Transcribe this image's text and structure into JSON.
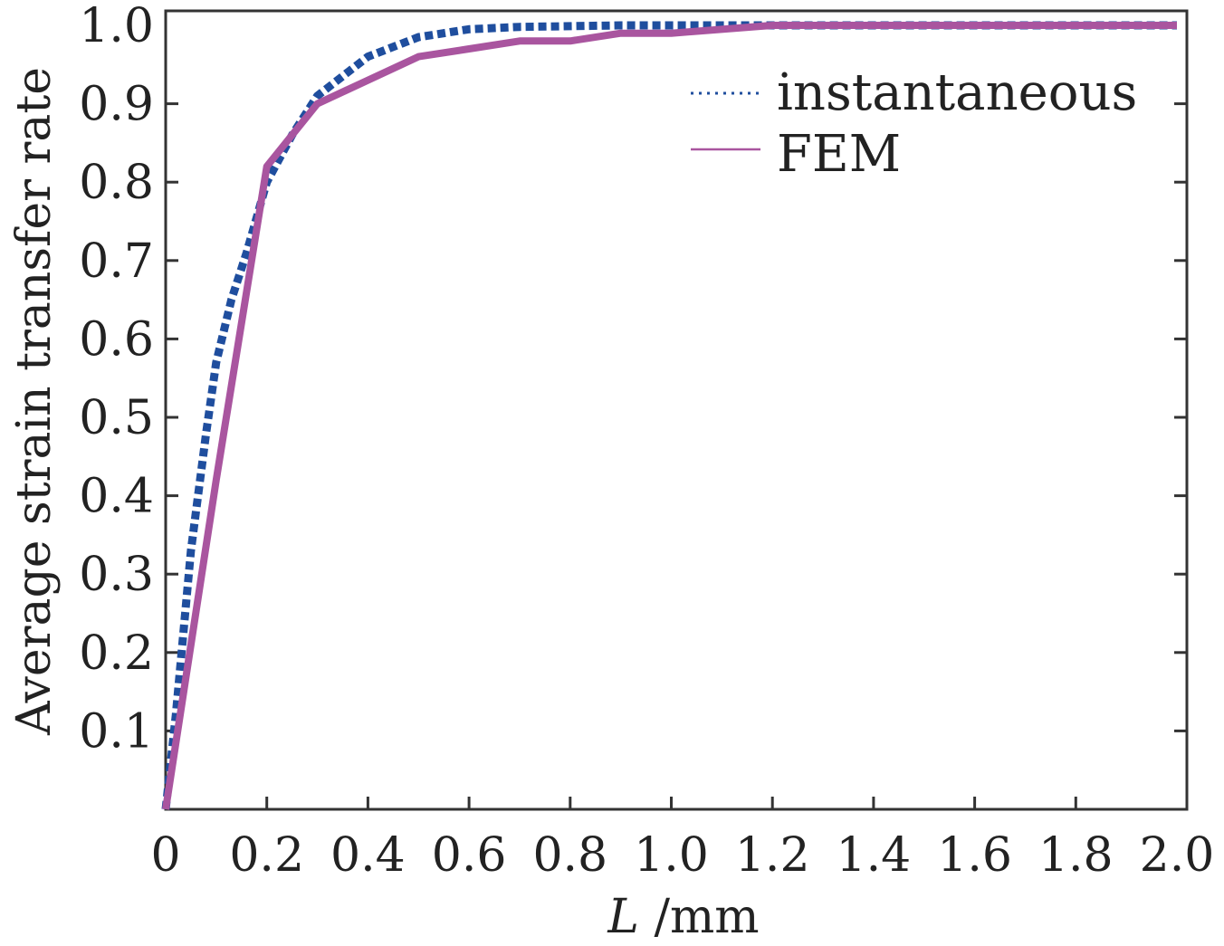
{
  "chart_data": {
    "type": "line",
    "title": "",
    "xlabel_italic": "L",
    "xlabel_unit": " /mm",
    "ylabel": "Average strain transfer rate",
    "xlim": [
      0,
      2.0
    ],
    "ylim": [
      0,
      1.0
    ],
    "x_ticks": [
      0,
      0.2,
      0.4,
      0.6,
      0.8,
      1.0,
      1.2,
      1.4,
      1.6,
      1.8,
      2.0
    ],
    "x_tick_labels": [
      "0",
      "0.2",
      "0.4",
      "0.6",
      "0.8",
      "1.0",
      "1.2",
      "1.4",
      "1.6",
      "1.8",
      "2.0"
    ],
    "y_ticks": [
      0.1,
      0.2,
      0.3,
      0.4,
      0.5,
      0.6,
      0.7,
      0.8,
      0.9,
      1.0
    ],
    "y_tick_labels": [
      "0.1",
      "0.2",
      "0.3",
      "0.4",
      "0.5",
      "0.6",
      "0.7",
      "0.8",
      "0.9",
      "1.0"
    ],
    "grid": false,
    "legend_position": "top-right",
    "series": [
      {
        "name": "instantaneous",
        "style": "dotted",
        "color": "#1f4e9e",
        "x": [
          0.0,
          0.02,
          0.05,
          0.08,
          0.1,
          0.13,
          0.16,
          0.2,
          0.25,
          0.3,
          0.4,
          0.5,
          0.6,
          0.7,
          0.8,
          0.9,
          1.0,
          1.2,
          1.4,
          1.6,
          1.8,
          2.0
        ],
        "y": [
          0.0,
          0.12,
          0.33,
          0.48,
          0.57,
          0.65,
          0.71,
          0.8,
          0.86,
          0.91,
          0.96,
          0.985,
          0.995,
          0.998,
          0.999,
          1.0,
          1.0,
          1.0,
          1.0,
          1.0,
          1.0,
          1.0
        ]
      },
      {
        "name": "FEM",
        "style": "solid",
        "color": "#a9559f",
        "x": [
          0.0,
          0.1,
          0.2,
          0.3,
          0.4,
          0.5,
          0.6,
          0.7,
          0.8,
          0.9,
          1.0,
          1.2,
          1.4,
          1.6,
          1.8,
          2.0
        ],
        "y": [
          0.0,
          0.42,
          0.82,
          0.9,
          0.93,
          0.96,
          0.97,
          0.98,
          0.98,
          0.99,
          0.99,
          1.0,
          1.0,
          1.0,
          1.0,
          1.0
        ]
      }
    ]
  }
}
